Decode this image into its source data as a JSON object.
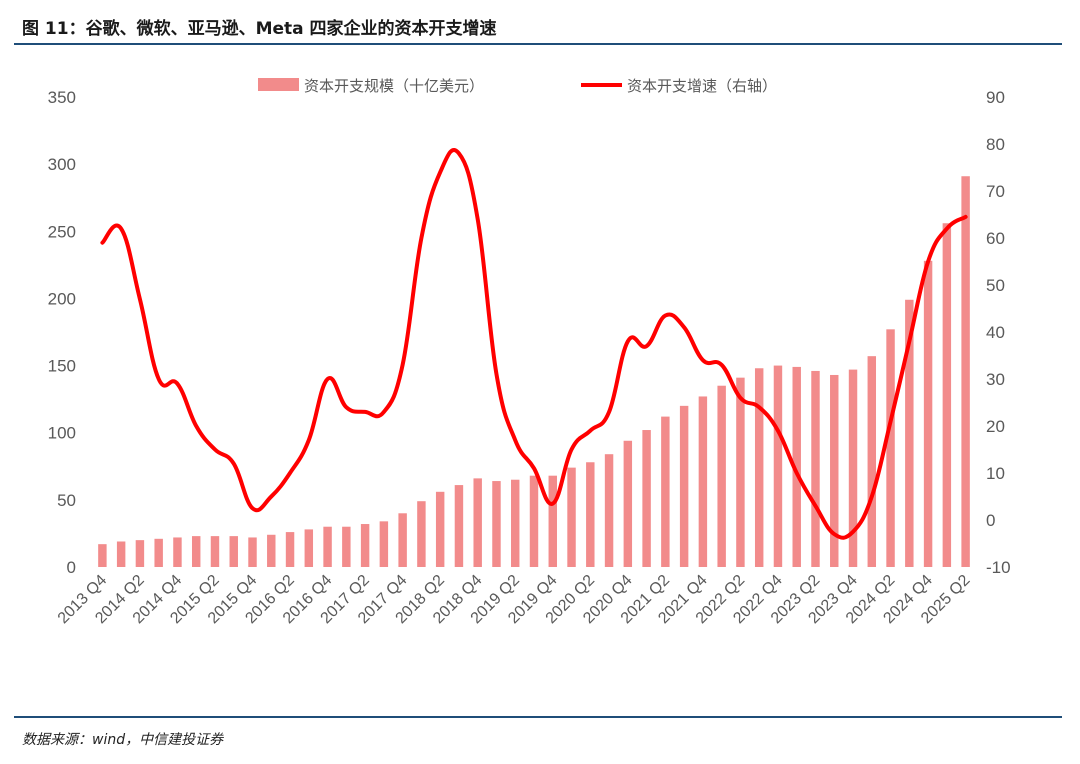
{
  "header": {
    "title": "图 11：谷歌、微软、亚马逊、Meta 四家企业的资本开支增速"
  },
  "footer": {
    "source": "数据来源：wind，中信建投证券"
  },
  "chart_data": {
    "type": "bar+line",
    "categories": [
      "2013 Q4",
      "2014 Q1",
      "2014 Q2",
      "2014 Q3",
      "2014 Q4",
      "2015 Q1",
      "2015 Q2",
      "2015 Q3",
      "2015 Q4",
      "2016 Q1",
      "2016 Q2",
      "2016 Q3",
      "2016 Q4",
      "2017 Q1",
      "2017 Q2",
      "2017 Q3",
      "2017 Q4",
      "2018 Q1",
      "2018 Q2",
      "2018 Q3",
      "2018 Q4",
      "2019 Q1",
      "2019 Q2",
      "2019 Q3",
      "2019 Q4",
      "2020 Q1",
      "2020 Q2",
      "2020 Q3",
      "2020 Q4",
      "2021 Q1",
      "2021 Q2",
      "2021 Q3",
      "2021 Q4",
      "2022 Q1",
      "2022 Q2",
      "2022 Q3",
      "2022 Q4",
      "2023 Q1",
      "2023 Q2",
      "2023 Q3",
      "2023 Q4",
      "2024 Q1",
      "2024 Q2",
      "2024 Q3",
      "2024 Q4",
      "2025 Q1",
      "2025 Q2"
    ],
    "x_tick_labels": [
      "2013 Q4",
      "2014 Q2",
      "2014 Q4",
      "2015 Q2",
      "2015 Q4",
      "2016 Q2",
      "2016 Q4",
      "2017 Q2",
      "2017 Q4",
      "2018 Q2",
      "2018 Q4",
      "2019 Q2",
      "2019 Q4",
      "2020 Q2",
      "2020 Q4",
      "2021 Q2",
      "2021 Q4",
      "2022 Q2",
      "2022 Q4",
      "2023 Q2",
      "2023 Q4",
      "2024 Q2",
      "2024 Q4",
      "2025 Q2"
    ],
    "series": [
      {
        "name": "资本开支规模（十亿美元）",
        "type": "bar",
        "axis": "left",
        "color": "#f28b8b",
        "values": [
          17,
          19,
          20,
          21,
          22,
          23,
          23,
          23,
          22,
          24,
          26,
          28,
          30,
          30,
          32,
          34,
          40,
          49,
          56,
          61,
          66,
          64,
          65,
          68,
          68,
          74,
          78,
          84,
          94,
          102,
          112,
          120,
          127,
          135,
          141,
          148,
          150,
          149,
          146,
          143,
          147,
          157,
          177,
          199,
          228,
          256,
          291
        ]
      },
      {
        "name": "资本开支增速（右轴）",
        "type": "line",
        "axis": "right",
        "color": "#ff0000",
        "values": [
          59,
          62,
          47,
          30,
          29,
          20,
          15,
          12,
          2.5,
          5,
          10,
          17,
          30,
          24,
          23,
          23,
          33,
          60,
          74,
          78,
          64,
          31,
          17,
          11,
          3.5,
          15,
          19,
          23,
          38,
          37,
          43.5,
          41,
          34,
          33,
          26,
          24,
          19,
          10,
          3,
          -3,
          -2.5,
          5,
          21,
          38,
          55,
          62,
          64.5
        ]
      }
    ],
    "y_left": {
      "min": 0,
      "max": 350,
      "ticks": [
        0,
        50,
        100,
        150,
        200,
        250,
        300,
        350
      ]
    },
    "y_right": {
      "min": -10,
      "max": 90,
      "ticks": [
        -10,
        0,
        10,
        20,
        30,
        40,
        50,
        60,
        70,
        80,
        90
      ]
    },
    "legend_position": "top-center",
    "grid": false
  }
}
